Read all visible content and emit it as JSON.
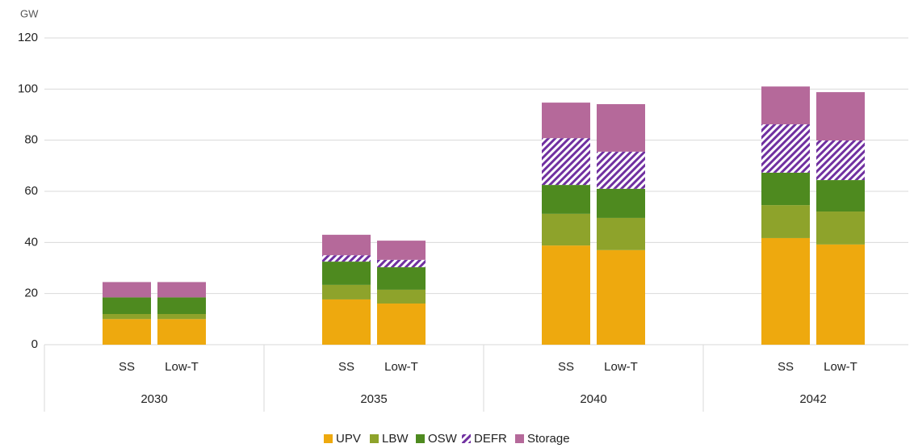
{
  "chart_data": {
    "type": "stacked_bar",
    "y_label": "GW",
    "groups": [
      "2030",
      "2035",
      "2040",
      "2042"
    ],
    "categories": [
      "SS",
      "Low-T",
      "SS",
      "Low-T",
      "SS",
      "Low-T",
      "SS",
      "Low-T"
    ],
    "series": [
      {
        "name": "UPV",
        "color": "#eea90e",
        "values": [
          10,
          10,
          17.7,
          16.1,
          38.8,
          37,
          41.7,
          39.2
        ]
      },
      {
        "name": "LBW",
        "color": "#8ea32b",
        "values": [
          2,
          2,
          5.7,
          5.4,
          12.4,
          12.6,
          12.9,
          12.9
        ]
      },
      {
        "name": "OSW",
        "color": "#4e8a1f",
        "values": [
          6.5,
          6.5,
          9.1,
          8.8,
          11.3,
          11.4,
          12.7,
          12.3
        ]
      },
      {
        "name": "DEFR",
        "color": "#7030a0",
        "pattern": "diagonal",
        "values": [
          0,
          0,
          2.5,
          2.9,
          18.3,
          14.5,
          18.9,
          15.5
        ]
      },
      {
        "name": "Storage",
        "color": "#b5699a",
        "values": [
          6,
          6,
          8,
          7.5,
          13.9,
          18.6,
          14.8,
          18.9
        ]
      }
    ],
    "ylim": [
      0,
      120
    ],
    "yticks": [
      0,
      20,
      40,
      60,
      80,
      100,
      120
    ],
    "grid": true,
    "legend": "bottom"
  }
}
